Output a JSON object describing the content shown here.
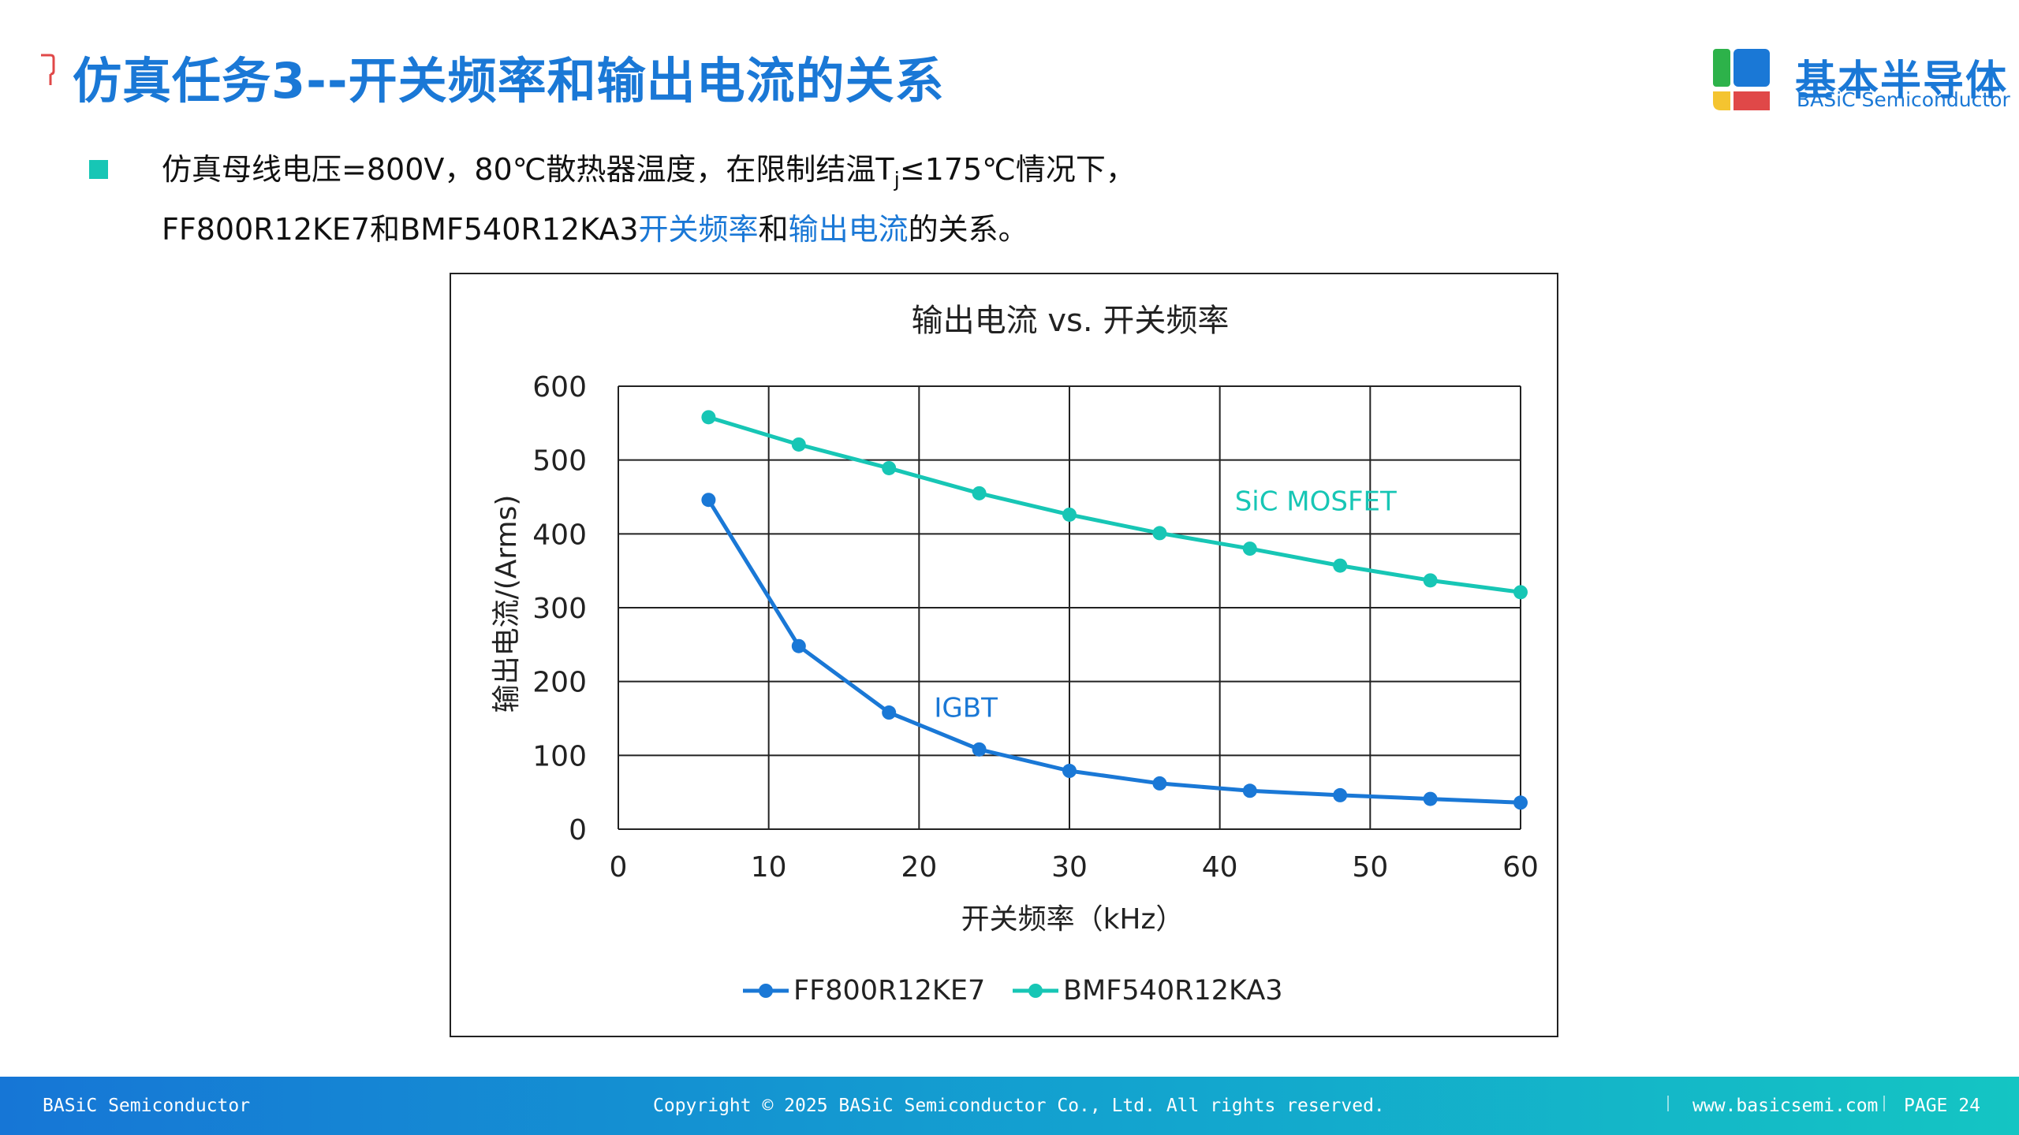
{
  "header": {
    "title": "仿真任务3--开关频率和输出电流的关系"
  },
  "logo": {
    "cn": "基本半导体",
    "en": "BASiC Semiconductor",
    "colors": [
      "#1a78d6",
      "#2db24a",
      "#f4c430",
      "#e04848"
    ]
  },
  "bullet": {
    "line1_a": "仿真母线电压=800V，80℃散热器温度，在限制结温T",
    "line1_sub": "j",
    "line1_b": "≤175℃情况下，",
    "line2_a": "FF800R12KE7和BMF540R12KA3",
    "line2_hl1": "开关频率",
    "line2_b": "和",
    "line2_hl2": "输出电流",
    "line2_c": "的关系。"
  },
  "chart_data": {
    "type": "line",
    "title": "输出电流 vs. 开关频率",
    "xlabel": "开关频率（kHz）",
    "ylabel": "输出电流/(Arms)",
    "xlim": [
      0,
      60
    ],
    "ylim": [
      0,
      600
    ],
    "xticks": [
      0,
      10,
      20,
      30,
      40,
      50,
      60
    ],
    "yticks": [
      0,
      100,
      200,
      300,
      400,
      500,
      600
    ],
    "grid": true,
    "legend_position": "bottom",
    "x": [
      6,
      12,
      18,
      24,
      30,
      36,
      42,
      48,
      54,
      60
    ],
    "series": [
      {
        "name": "FF800R12KE7",
        "color": "#1a78d6",
        "values": [
          446,
          248,
          158,
          108,
          79,
          62,
          52,
          46,
          41,
          36
        ]
      },
      {
        "name": "BMF540R12KA3",
        "color": "#17c6b5",
        "values": [
          558,
          521,
          489,
          455,
          426,
          401,
          380,
          357,
          337,
          321
        ]
      }
    ],
    "annotations": [
      {
        "text": "SiC MOSFET",
        "x": 41,
        "y": 432,
        "color": "#17c6b5"
      },
      {
        "text": "IGBT",
        "x": 21,
        "y": 152,
        "color": "#1a78d6"
      }
    ]
  },
  "footer": {
    "company": "BASiC Semiconductor",
    "copyright": "Copyright © 2025 BASiC Semiconductor Co., Ltd. All rights reserved.",
    "url": "www.basicsemi.com",
    "page": "PAGE 24"
  }
}
